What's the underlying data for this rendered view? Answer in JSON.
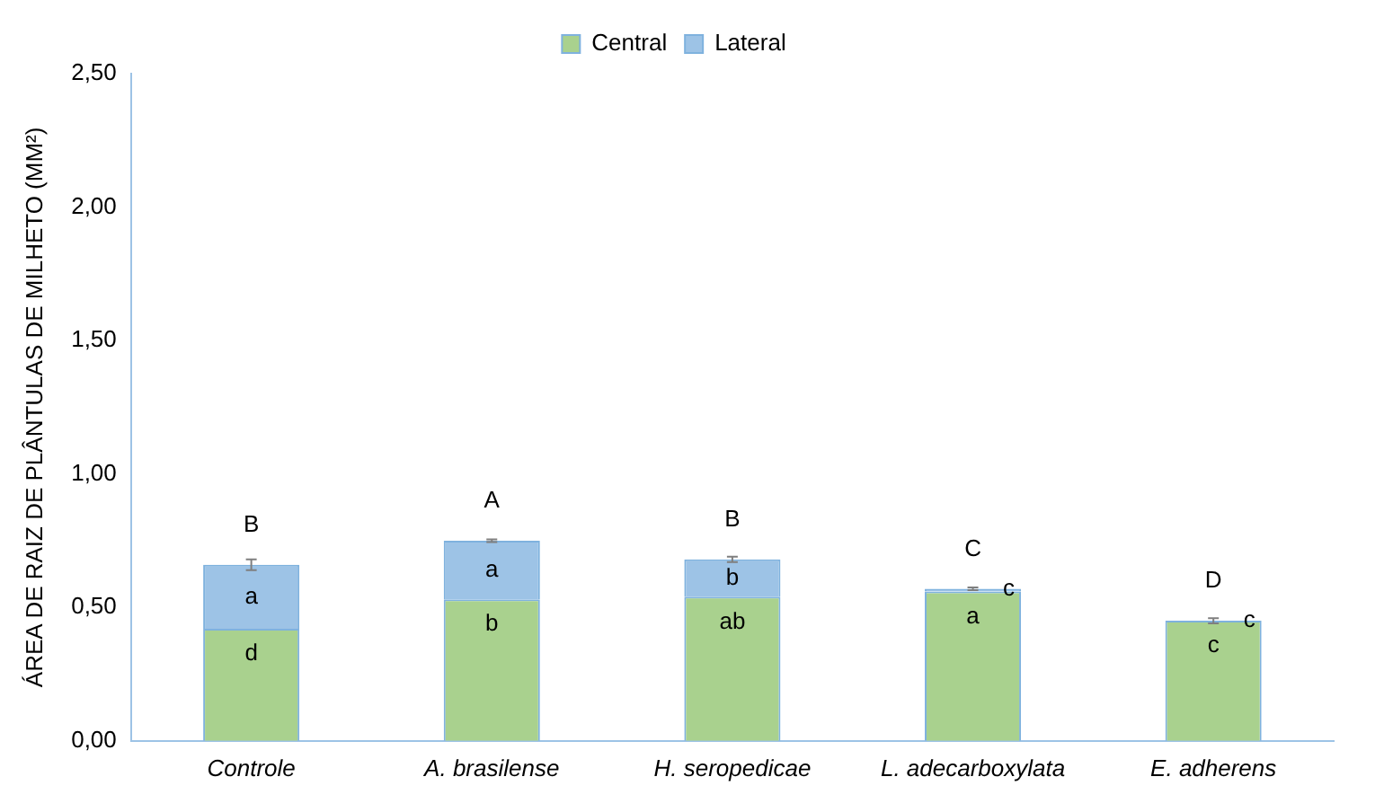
{
  "chart_data": {
    "type": "bar",
    "stacked": true,
    "ylabel": "ÁREA DE RAIZ DE PLÂNTULAS DE MILHETO (MM²)",
    "categories": [
      "Controle",
      "A. brasilense",
      "H. seropedicae",
      "L. adecarboxylata",
      "E. adherens"
    ],
    "series": [
      {
        "name": "Central",
        "color": "#a9d18e",
        "values": [
          0.42,
          0.53,
          0.54,
          0.56,
          0.45
        ]
      },
      {
        "name": "Lateral",
        "color": "#9dc3e6",
        "values": [
          0.24,
          0.22,
          0.14,
          0.01,
          0
        ],
        "errors": [
          0.02,
          0.005,
          0.01,
          0.005,
          0.01
        ]
      }
    ],
    "ylim": [
      0,
      2.5
    ],
    "yticks": [
      {
        "value": 0,
        "label": "0,00"
      },
      {
        "value": 0.5,
        "label": "0,50"
      },
      {
        "value": 1,
        "label": "1,00"
      },
      {
        "value": 1.5,
        "label": "1,50"
      },
      {
        "value": 2,
        "label": "2,00"
      },
      {
        "value": 2.5,
        "label": "2,50"
      }
    ],
    "grid": false,
    "legend": "top",
    "annotations": [
      "B",
      "a",
      "d",
      "A",
      "a",
      "b",
      "B",
      "b",
      "ab",
      "C",
      "c",
      "a",
      "D",
      "c",
      "c"
    ]
  }
}
